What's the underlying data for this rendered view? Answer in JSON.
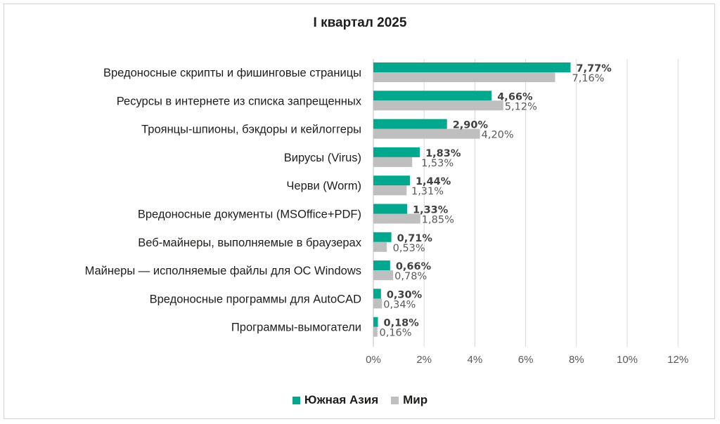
{
  "chart_data": {
    "type": "bar",
    "orientation": "horizontal",
    "title": "I квартал 2025",
    "categories": [
      "Вредоносные скрипты и фишинговые страницы",
      "Ресурсы в интернете из списка запрещенных",
      "Троянцы-шпионы, бэкдоры и кейлоггеры",
      "Вирусы (Virus)",
      "Черви (Worm)",
      "Вредоносные документы (MSOffice+PDF)",
      "Веб-майнеры, выполняемые в браузерах",
      "Майнеры — исполняемые файлы для ОС Windows",
      "Вредоносные программы для AutoCAD",
      "Программы-вымогатели"
    ],
    "series": [
      {
        "name": "Южная Азия",
        "color": "#00A88E",
        "values": [
          7.77,
          4.66,
          2.9,
          1.83,
          1.44,
          1.33,
          0.71,
          0.66,
          0.3,
          0.18
        ],
        "labels": [
          "7,77%",
          "4,66%",
          "2,90%",
          "1,83%",
          "1,44%",
          "1,33%",
          "0,71%",
          "0,66%",
          "0,30%",
          "0,18%"
        ]
      },
      {
        "name": "Мир",
        "color": "#BFBFBF",
        "values": [
          7.16,
          5.12,
          4.2,
          1.53,
          1.31,
          1.85,
          0.53,
          0.78,
          0.34,
          0.16
        ],
        "labels": [
          "7,16%",
          "5,12%",
          "4,20%",
          "1,53%",
          "1,31%",
          "1,85%",
          "0,53%",
          "0,78%",
          "0,34%",
          "0,16%"
        ]
      }
    ],
    "xlim": [
      0,
      12
    ],
    "xticks": [
      0,
      2,
      4,
      6,
      8,
      10,
      12
    ],
    "xtick_labels": [
      "0%",
      "2%",
      "4%",
      "6%",
      "8%",
      "10%",
      "12%"
    ],
    "grid": true,
    "legend_position": "bottom"
  }
}
